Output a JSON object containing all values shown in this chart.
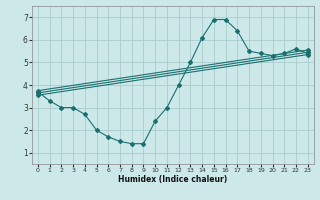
{
  "xlabel": "Humidex (Indice chaleur)",
  "bg_color": "#cce8e8",
  "grid_color": "#aacccc",
  "line_color": "#1a7070",
  "xlim": [
    -0.5,
    23.5
  ],
  "ylim": [
    0.5,
    7.5
  ],
  "xticks": [
    0,
    1,
    2,
    3,
    4,
    5,
    6,
    7,
    8,
    9,
    10,
    11,
    12,
    13,
    14,
    15,
    16,
    17,
    18,
    19,
    20,
    21,
    22,
    23
  ],
  "yticks": [
    1,
    2,
    3,
    4,
    5,
    6,
    7
  ],
  "series_main": {
    "x": [
      0,
      1,
      2,
      3,
      4,
      5,
      6,
      7,
      8,
      9,
      10,
      11,
      12,
      13,
      14,
      15,
      16,
      17,
      18,
      19,
      20,
      21,
      22,
      23
    ],
    "y": [
      3.7,
      3.3,
      3.0,
      3.0,
      2.7,
      2.0,
      1.7,
      1.5,
      1.4,
      1.4,
      2.4,
      3.0,
      4.0,
      5.0,
      6.1,
      6.9,
      6.9,
      6.4,
      5.5,
      5.4,
      5.3,
      5.4,
      5.6,
      5.4
    ]
  },
  "series_lines": [
    {
      "x": [
        0,
        23
      ],
      "y": [
        3.55,
        5.35
      ]
    },
    {
      "x": [
        0,
        23
      ],
      "y": [
        3.65,
        5.45
      ]
    },
    {
      "x": [
        0,
        23
      ],
      "y": [
        3.75,
        5.55
      ]
    }
  ]
}
